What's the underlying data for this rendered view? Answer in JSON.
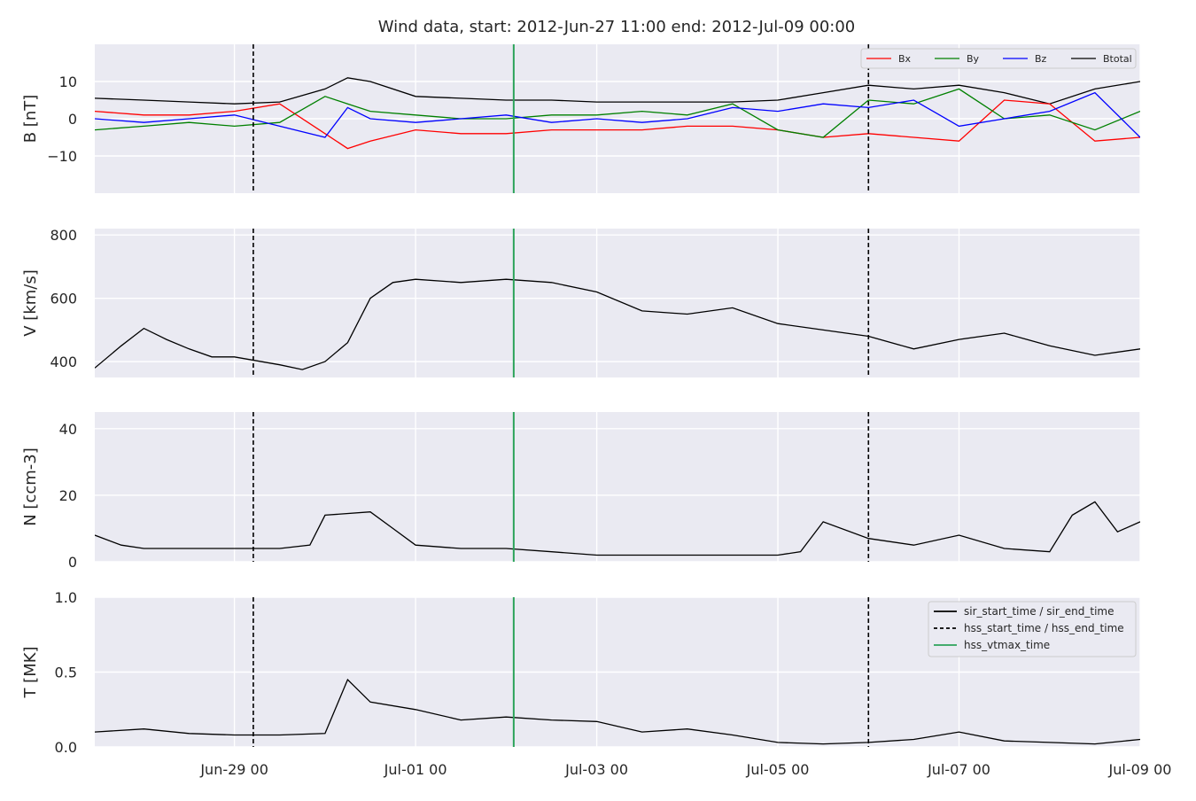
{
  "figure": {
    "title": "Wind data, start: 2012-Jun-27 11:00  end: 2012-Jul-09 00:00"
  },
  "chart_data": {
    "type": "line",
    "x_axis": {
      "start": "2012-06-27 11:00",
      "end": "2012-07-09 00:00",
      "tick_labels": [
        "Jun-29 00",
        "Jul-01 00",
        "Jul-03 00",
        "Jul-05 00",
        "Jul-07 00",
        "Jul-09 00"
      ],
      "tick_times": [
        "2012-06-29 00:00",
        "2012-07-01 00:00",
        "2012-07-03 00:00",
        "2012-07-05 00:00",
        "2012-07-07 00:00",
        "2012-07-09 00:00"
      ]
    },
    "markers": {
      "hss_start_time": "2012-06-29 05:00",
      "hss_end_time": "2012-07-06 00:00",
      "hss_vtmax_time": "2012-07-02 02:00"
    },
    "panels": [
      {
        "id": "B",
        "ylabel": "B [nT]",
        "ylim": [
          -20,
          20
        ],
        "yticks": [
          -10,
          0,
          10
        ],
        "ytick_labels": [
          "−10",
          "0",
          "10"
        ],
        "legend": {
          "placement": "top-right",
          "entries": [
            {
              "label": "Bx",
              "color": "#ff0000"
            },
            {
              "label": "By",
              "color": "#008000"
            },
            {
              "label": "Bz",
              "color": "#0000ff"
            },
            {
              "label": "Btotal",
              "color": "#000000"
            }
          ]
        },
        "series": [
          {
            "name": "Btotal",
            "color": "#000000",
            "t": [
              "2012-06-27 11:00",
              "2012-06-28 00:00",
              "2012-06-28 12:00",
              "2012-06-29 00:00",
              "2012-06-29 12:00",
              "2012-06-30 00:00",
              "2012-06-30 06:00",
              "2012-06-30 12:00",
              "2012-07-01 00:00",
              "2012-07-01 12:00",
              "2012-07-02 00:00",
              "2012-07-02 12:00",
              "2012-07-03 00:00",
              "2012-07-03 12:00",
              "2012-07-04 00:00",
              "2012-07-04 12:00",
              "2012-07-05 00:00",
              "2012-07-05 12:00",
              "2012-07-06 00:00",
              "2012-07-06 12:00",
              "2012-07-07 00:00",
              "2012-07-07 12:00",
              "2012-07-08 00:00",
              "2012-07-08 12:00",
              "2012-07-09 00:00"
            ],
            "values": [
              5.5,
              5,
              4.5,
              4,
              4.5,
              8,
              11,
              10,
              6,
              5.5,
              5,
              5,
              4.5,
              4.5,
              4.5,
              4.5,
              5,
              7,
              9,
              8,
              9,
              7,
              4,
              8,
              10
            ]
          },
          {
            "name": "Bx",
            "color": "#ff0000",
            "t": [
              "2012-06-27 11:00",
              "2012-06-28 00:00",
              "2012-06-28 12:00",
              "2012-06-29 00:00",
              "2012-06-29 12:00",
              "2012-06-30 00:00",
              "2012-06-30 06:00",
              "2012-06-30 12:00",
              "2012-07-01 00:00",
              "2012-07-01 12:00",
              "2012-07-02 00:00",
              "2012-07-02 12:00",
              "2012-07-03 00:00",
              "2012-07-03 12:00",
              "2012-07-04 00:00",
              "2012-07-04 12:00",
              "2012-07-05 00:00",
              "2012-07-05 12:00",
              "2012-07-06 00:00",
              "2012-07-06 12:00",
              "2012-07-07 00:00",
              "2012-07-07 12:00",
              "2012-07-08 00:00",
              "2012-07-08 12:00",
              "2012-07-09 00:00"
            ],
            "values": [
              2,
              1,
              1,
              2,
              4,
              -4,
              -8,
              -6,
              -3,
              -4,
              -4,
              -3,
              -3,
              -3,
              -2,
              -2,
              -3,
              -5,
              -4,
              -5,
              -6,
              5,
              4,
              -6,
              -5
            ]
          },
          {
            "name": "By",
            "color": "#008000",
            "t": [
              "2012-06-27 11:00",
              "2012-06-28 00:00",
              "2012-06-28 12:00",
              "2012-06-29 00:00",
              "2012-06-29 12:00",
              "2012-06-30 00:00",
              "2012-06-30 06:00",
              "2012-06-30 12:00",
              "2012-07-01 00:00",
              "2012-07-01 12:00",
              "2012-07-02 00:00",
              "2012-07-02 12:00",
              "2012-07-03 00:00",
              "2012-07-03 12:00",
              "2012-07-04 00:00",
              "2012-07-04 12:00",
              "2012-07-05 00:00",
              "2012-07-05 12:00",
              "2012-07-06 00:00",
              "2012-07-06 12:00",
              "2012-07-07 00:00",
              "2012-07-07 12:00",
              "2012-07-08 00:00",
              "2012-07-08 12:00",
              "2012-07-09 00:00"
            ],
            "values": [
              -3,
              -2,
              -1,
              -2,
              -1,
              6,
              4,
              2,
              1,
              0,
              0,
              1,
              1,
              2,
              1,
              4,
              -3,
              -5,
              5,
              4,
              8,
              0,
              1,
              -3,
              2
            ]
          },
          {
            "name": "Bz",
            "color": "#0000ff",
            "t": [
              "2012-06-27 11:00",
              "2012-06-28 00:00",
              "2012-06-28 12:00",
              "2012-06-29 00:00",
              "2012-06-29 12:00",
              "2012-06-30 00:00",
              "2012-06-30 06:00",
              "2012-06-30 12:00",
              "2012-07-01 00:00",
              "2012-07-01 12:00",
              "2012-07-02 00:00",
              "2012-07-02 12:00",
              "2012-07-03 00:00",
              "2012-07-03 12:00",
              "2012-07-04 00:00",
              "2012-07-04 12:00",
              "2012-07-05 00:00",
              "2012-07-05 12:00",
              "2012-07-06 00:00",
              "2012-07-06 12:00",
              "2012-07-07 00:00",
              "2012-07-07 12:00",
              "2012-07-08 00:00",
              "2012-07-08 12:00",
              "2012-07-09 00:00"
            ],
            "values": [
              0,
              -1,
              0,
              1,
              -2,
              -5,
              3,
              0,
              -1,
              0,
              1,
              -1,
              0,
              -1,
              0,
              3,
              2,
              4,
              3,
              5,
              -2,
              0,
              2,
              7,
              -5
            ]
          }
        ]
      },
      {
        "id": "V",
        "ylabel": "V [km/s]",
        "ylim": [
          350,
          820
        ],
        "yticks": [
          400,
          600,
          800
        ],
        "ytick_labels": [
          "400",
          "600",
          "800"
        ],
        "series": [
          {
            "name": "V",
            "color": "#000000",
            "t": [
              "2012-06-27 11:00",
              "2012-06-27 18:00",
              "2012-06-28 00:00",
              "2012-06-28 06:00",
              "2012-06-28 12:00",
              "2012-06-28 18:00",
              "2012-06-29 00:00",
              "2012-06-29 12:00",
              "2012-06-29 18:00",
              "2012-06-30 00:00",
              "2012-06-30 06:00",
              "2012-06-30 12:00",
              "2012-06-30 18:00",
              "2012-07-01 00:00",
              "2012-07-01 12:00",
              "2012-07-02 00:00",
              "2012-07-02 12:00",
              "2012-07-03 00:00",
              "2012-07-03 12:00",
              "2012-07-04 00:00",
              "2012-07-04 12:00",
              "2012-07-05 00:00",
              "2012-07-05 12:00",
              "2012-07-06 00:00",
              "2012-07-06 12:00",
              "2012-07-07 00:00",
              "2012-07-07 12:00",
              "2012-07-08 00:00",
              "2012-07-08 12:00",
              "2012-07-09 00:00"
            ],
            "values": [
              380,
              450,
              505,
              470,
              440,
              415,
              415,
              390,
              375,
              400,
              460,
              600,
              650,
              660,
              650,
              660,
              650,
              620,
              560,
              550,
              570,
              520,
              500,
              480,
              440,
              470,
              490,
              450,
              420,
              440
            ]
          }
        ]
      },
      {
        "id": "N",
        "ylabel": "N [ccm-3]",
        "ylim": [
          0,
          45
        ],
        "yticks": [
          0,
          20,
          40
        ],
        "ytick_labels": [
          "0",
          "20",
          "40"
        ],
        "series": [
          {
            "name": "N",
            "color": "#000000",
            "t": [
              "2012-06-27 11:00",
              "2012-06-27 18:00",
              "2012-06-28 00:00",
              "2012-06-28 12:00",
              "2012-06-29 00:00",
              "2012-06-29 12:00",
              "2012-06-29 20:00",
              "2012-06-30 00:00",
              "2012-06-30 12:00",
              "2012-06-30 18:00",
              "2012-07-01 00:00",
              "2012-07-01 12:00",
              "2012-07-02 00:00",
              "2012-07-02 12:00",
              "2012-07-03 00:00",
              "2012-07-04 00:00",
              "2012-07-05 00:00",
              "2012-07-05 06:00",
              "2012-07-05 12:00",
              "2012-07-06 00:00",
              "2012-07-06 12:00",
              "2012-07-07 00:00",
              "2012-07-07 12:00",
              "2012-07-08 00:00",
              "2012-07-08 06:00",
              "2012-07-08 12:00",
              "2012-07-08 18:00",
              "2012-07-09 00:00"
            ],
            "values": [
              8,
              5,
              4,
              4,
              4,
              4,
              5,
              14,
              15,
              10,
              5,
              4,
              4,
              3,
              2,
              2,
              2,
              3,
              12,
              7,
              5,
              8,
              4,
              3,
              14,
              18,
              9,
              12
            ]
          }
        ]
      },
      {
        "id": "T",
        "ylabel": "T [MK]",
        "ylim": [
          0,
          1.0
        ],
        "yticks": [
          0.0,
          0.5,
          1.0
        ],
        "ytick_labels": [
          "0.0",
          "0.5",
          "1.0"
        ],
        "legend": {
          "placement": "top-right",
          "entries": [
            {
              "label": "sir_start_time / sir_end_time",
              "style": "solid",
              "color": "#000000"
            },
            {
              "label": "hss_start_time / hss_end_time",
              "style": "dashed",
              "color": "#000000"
            },
            {
              "label": "hss_vtmax_time",
              "style": "solid",
              "color": "#2ca35a"
            }
          ]
        },
        "series": [
          {
            "name": "T",
            "color": "#000000",
            "t": [
              "2012-06-27 11:00",
              "2012-06-28 00:00",
              "2012-06-28 12:00",
              "2012-06-29 00:00",
              "2012-06-29 12:00",
              "2012-06-30 00:00",
              "2012-06-30 06:00",
              "2012-06-30 12:00",
              "2012-07-01 00:00",
              "2012-07-01 12:00",
              "2012-07-02 00:00",
              "2012-07-02 12:00",
              "2012-07-03 00:00",
              "2012-07-03 12:00",
              "2012-07-04 00:00",
              "2012-07-04 12:00",
              "2012-07-05 00:00",
              "2012-07-05 12:00",
              "2012-07-06 00:00",
              "2012-07-06 12:00",
              "2012-07-07 00:00",
              "2012-07-07 12:00",
              "2012-07-08 00:00",
              "2012-07-08 12:00",
              "2012-07-09 00:00"
            ],
            "values": [
              0.1,
              0.12,
              0.09,
              0.08,
              0.08,
              0.09,
              0.45,
              0.3,
              0.25,
              0.18,
              0.2,
              0.18,
              0.17,
              0.1,
              0.12,
              0.08,
              0.03,
              0.02,
              0.03,
              0.05,
              0.1,
              0.04,
              0.03,
              0.02,
              0.05
            ]
          }
        ]
      }
    ]
  }
}
